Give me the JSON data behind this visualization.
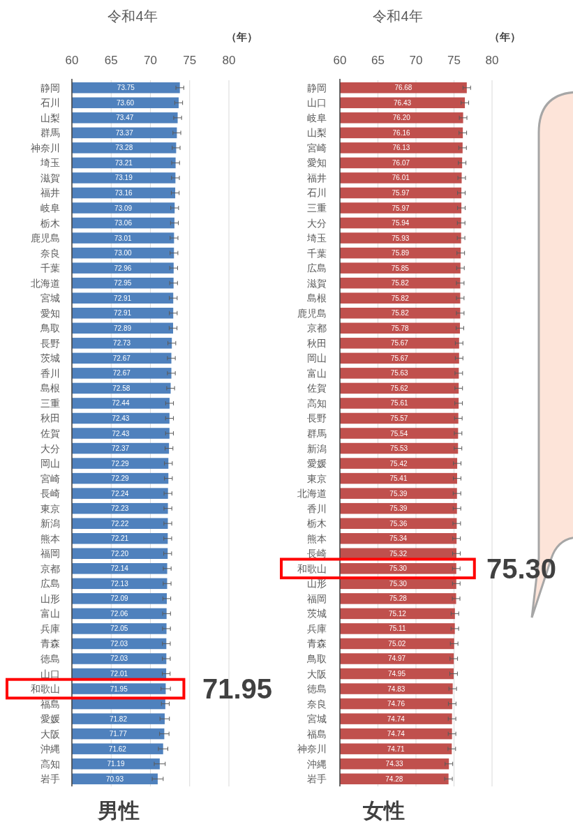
{
  "chart_data": [
    {
      "type": "bar",
      "orientation": "horizontal",
      "title": "令和4年",
      "xlabel": "（年）",
      "xlim": [
        60,
        80
      ],
      "xticks": [
        60,
        65,
        70,
        75,
        80
      ],
      "grid": "x",
      "categories": [
        "静岡",
        "石川",
        "山梨",
        "群馬",
        "神奈川",
        "埼玉",
        "滋賀",
        "福井",
        "岐阜",
        "栃木",
        "鹿児島",
        "奈良",
        "千葉",
        "北海道",
        "宮城",
        "愛知",
        "鳥取",
        "長野",
        "茨城",
        "香川",
        "島根",
        "三重",
        "秋田",
        "佐賀",
        "大分",
        "岡山",
        "宮崎",
        "長崎",
        "東京",
        "新潟",
        "熊本",
        "福岡",
        "京都",
        "広島",
        "山形",
        "富山",
        "兵庫",
        "青森",
        "徳島",
        "山口",
        "和歌山",
        "福島",
        "愛媛",
        "大阪",
        "沖縄",
        "高知",
        "岩手"
      ],
      "series": [
        {
          "color": "#4f81bd",
          "values": [
            73.75,
            73.6,
            73.47,
            73.37,
            73.28,
            73.21,
            73.19,
            73.16,
            73.09,
            73.06,
            73.01,
            73.0,
            72.96,
            72.95,
            72.91,
            72.91,
            72.89,
            72.73,
            72.67,
            72.67,
            72.58,
            72.44,
            72.43,
            72.43,
            72.37,
            72.29,
            72.29,
            72.24,
            72.23,
            72.22,
            72.21,
            72.2,
            72.14,
            72.13,
            72.09,
            72.06,
            72.05,
            72.03,
            72.03,
            72.01,
            71.95,
            71.9,
            71.82,
            71.77,
            71.62,
            71.19,
            70.93
          ],
          "value_labels": [
            "73.75",
            "73.60",
            "73.47",
            "73.37",
            "73.28",
            "73.21",
            "73.19",
            "73.16",
            "73.09",
            "73.06",
            "73.01",
            "73.00",
            "72.96",
            "72.95",
            "72.91",
            "72.91",
            "72.89",
            "72.73",
            "72.67",
            "72.67",
            "72.58",
            "72.44",
            "72.43",
            "72.43",
            "72.37",
            "72.29",
            "72.29",
            "72.24",
            "72.23",
            "72.22",
            "72.21",
            "72.20",
            "72.14",
            "72.13",
            "72.09",
            "72.06",
            "72.05",
            "72.03",
            "72.03",
            "72.01",
            "71.95",
            null,
            "71.82",
            "71.77",
            "71.62",
            "71.19",
            "70.93"
          ],
          "errors": [
            0.5,
            0.5,
            0.5,
            0.5,
            0.5,
            0.5,
            0.5,
            0.5,
            0.5,
            0.5,
            0.5,
            0.5,
            0.5,
            0.5,
            0.5,
            0.5,
            0.5,
            0.5,
            0.5,
            0.5,
            0.5,
            0.5,
            0.5,
            0.5,
            0.5,
            0.5,
            0.5,
            0.5,
            0.5,
            0.5,
            0.5,
            0.5,
            0.5,
            0.5,
            0.5,
            0.5,
            0.5,
            0.5,
            0.5,
            0.5,
            0.6,
            0.5,
            0.6,
            0.6,
            0.6,
            0.7,
            0.7
          ]
        }
      ],
      "annotations": [
        {
          "text": "71.95",
          "x": 71.95,
          "y": "和歌山"
        },
        "男性"
      ]
    },
    {
      "type": "bar",
      "orientation": "horizontal",
      "title": "令和4年",
      "xlabel": "（年）",
      "xlim": [
        60,
        80
      ],
      "xticks": [
        60,
        65,
        70,
        75,
        80
      ],
      "grid": "x",
      "categories": [
        "静岡",
        "山口",
        "岐阜",
        "山梨",
        "宮崎",
        "愛知",
        "福井",
        "石川",
        "三重",
        "大分",
        "埼玉",
        "千葉",
        "広島",
        "滋賀",
        "島根",
        "鹿児島",
        "京都",
        "秋田",
        "岡山",
        "富山",
        "佐賀",
        "高知",
        "長野",
        "群馬",
        "新潟",
        "愛媛",
        "東京",
        "北海道",
        "香川",
        "栃木",
        "熊本",
        "長崎",
        "和歌山",
        "山形",
        "福岡",
        "茨城",
        "兵庫",
        "青森",
        "鳥取",
        "大阪",
        "徳島",
        "奈良",
        "宮城",
        "福島",
        "神奈川",
        "沖縄",
        "岩手"
      ],
      "series": [
        {
          "color": "#c0504d",
          "values": [
            76.68,
            76.43,
            76.2,
            76.16,
            76.13,
            76.07,
            76.01,
            75.97,
            75.97,
            75.94,
            75.93,
            75.89,
            75.85,
            75.82,
            75.82,
            75.82,
            75.78,
            75.67,
            75.67,
            75.63,
            75.62,
            75.61,
            75.57,
            75.54,
            75.53,
            75.42,
            75.41,
            75.39,
            75.39,
            75.36,
            75.34,
            75.32,
            75.3,
            75.3,
            75.28,
            75.12,
            75.11,
            75.02,
            74.97,
            74.95,
            74.83,
            74.76,
            74.74,
            74.74,
            74.71,
            74.33,
            74.28
          ],
          "value_labels": [
            "76.68",
            "76.43",
            "76.20",
            "76.16",
            "76.13",
            "76.07",
            "76.01",
            "75.97",
            "75.97",
            "75.94",
            "75.93",
            "75.89",
            "75.85",
            "75.82",
            "75.82",
            "75.82",
            "75.78",
            "75.67",
            "75.67",
            "75.63",
            "75.62",
            "75.61",
            "75.57",
            "75.54",
            "75.53",
            "75.42",
            "75.41",
            "75.39",
            "75.39",
            "75.36",
            "75.34",
            "75.32",
            "75.30",
            "75.30",
            "75.28",
            "75.12",
            "75.11",
            "75.02",
            "74.97",
            "74.95",
            "74.83",
            "74.76",
            "74.74",
            "74.74",
            "74.71",
            "74.33",
            "74.28"
          ],
          "errors": [
            0.5,
            0.5,
            0.5,
            0.5,
            0.5,
            0.5,
            0.5,
            0.5,
            0.5,
            0.5,
            0.5,
            0.5,
            0.5,
            0.5,
            0.5,
            0.5,
            0.5,
            0.5,
            0.5,
            0.5,
            0.5,
            0.5,
            0.5,
            0.5,
            0.5,
            0.5,
            0.5,
            0.5,
            0.5,
            0.5,
            0.5,
            0.5,
            0.5,
            0.5,
            0.5,
            0.5,
            0.5,
            0.5,
            0.5,
            0.5,
            0.5,
            0.5,
            0.5,
            0.5,
            0.5,
            0.5,
            0.5
          ]
        }
      ],
      "annotations": [
        {
          "text": "75.30",
          "x": 75.3,
          "y": "和歌山"
        },
        "女性"
      ]
    }
  ]
}
